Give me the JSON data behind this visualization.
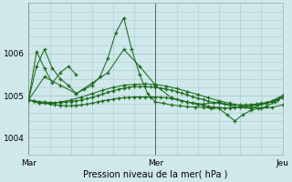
{
  "background_color": "#cfe8eb",
  "grid_color": "#a8c8cc",
  "line_color": "#1a6b1a",
  "title": "Pression niveau de la mer( hPa )",
  "xtick_labels": [
    "Mar",
    "Mer",
    "Jeu"
  ],
  "xtick_positions": [
    0,
    48,
    96
  ],
  "ylim": [
    1003.7,
    1007.0
  ],
  "ytick_positions": [
    1004,
    1005,
    1006
  ],
  "xlim": [
    0,
    96
  ],
  "lines": [
    {
      "x": [
        0,
        2,
        4,
        6,
        8,
        10,
        12,
        14,
        16,
        18,
        20,
        22,
        24,
        26,
        28,
        30,
        32,
        34,
        36,
        38,
        40,
        42,
        44,
        46,
        48,
        50,
        52,
        54,
        56,
        58,
        60,
        62,
        64,
        66,
        68,
        70,
        72,
        74,
        76,
        78,
        80,
        82,
        84,
        86,
        88,
        90,
        92,
        94,
        96
      ],
      "y": [
        1004.9,
        1004.87,
        1004.84,
        1004.82,
        1004.8,
        1004.78,
        1004.77,
        1004.76,
        1004.76,
        1004.77,
        1004.78,
        1004.8,
        1004.82,
        1004.85,
        1004.88,
        1004.9,
        1004.92,
        1004.94,
        1004.95,
        1004.96,
        1004.97,
        1004.97,
        1004.97,
        1004.97,
        1004.97,
        1004.96,
        1004.95,
        1004.93,
        1004.91,
        1004.88,
        1004.85,
        1004.82,
        1004.79,
        1004.77,
        1004.75,
        1004.73,
        1004.72,
        1004.71,
        1004.71,
        1004.72,
        1004.73,
        1004.74,
        1004.76,
        1004.78,
        1004.8,
        1004.83,
        1004.86,
        1004.9,
        1004.95
      ]
    },
    {
      "x": [
        0,
        2,
        4,
        6,
        8,
        10,
        12,
        14,
        16,
        18,
        20,
        22,
        24,
        26,
        28,
        30,
        32,
        34,
        36,
        38,
        40,
        42,
        44,
        46,
        48,
        50,
        52,
        54,
        56,
        58,
        60,
        62,
        64,
        66,
        68,
        70,
        72,
        74,
        76,
        78,
        80,
        82,
        84,
        86,
        88,
        90,
        92,
        94,
        96
      ],
      "y": [
        1004.9,
        1004.88,
        1004.86,
        1004.85,
        1004.84,
        1004.84,
        1004.84,
        1004.85,
        1004.86,
        1004.88,
        1004.9,
        1004.93,
        1004.96,
        1005.0,
        1005.04,
        1005.08,
        1005.12,
        1005.15,
        1005.18,
        1005.2,
        1005.22,
        1005.22,
        1005.22,
        1005.21,
        1005.2,
        1005.18,
        1005.16,
        1005.13,
        1005.1,
        1005.06,
        1005.02,
        1004.98,
        1004.94,
        1004.91,
        1004.87,
        1004.84,
        1004.82,
        1004.8,
        1004.79,
        1004.78,
        1004.78,
        1004.78,
        1004.79,
        1004.8,
        1004.82,
        1004.84,
        1004.87,
        1004.91,
        1004.95
      ]
    },
    {
      "x": [
        0,
        4,
        8,
        12,
        16,
        20,
        24,
        28,
        32,
        36,
        40,
        44,
        48,
        52,
        56,
        60,
        64,
        68,
        72,
        76,
        80,
        84,
        88,
        92,
        96
      ],
      "y": [
        1004.9,
        1004.82,
        1004.82,
        1004.85,
        1004.9,
        1004.97,
        1005.05,
        1005.13,
        1005.2,
        1005.25,
        1005.27,
        1005.28,
        1005.27,
        1005.23,
        1005.17,
        1005.1,
        1005.03,
        1004.95,
        1004.88,
        1004.82,
        1004.76,
        1004.72,
        1004.7,
        1004.72,
        1004.78
      ]
    },
    {
      "x": [
        0,
        6,
        12,
        18,
        24,
        30,
        36,
        42,
        48,
        54,
        60,
        66,
        72,
        78,
        84,
        90,
        96
      ],
      "y": [
        1004.9,
        1005.45,
        1005.25,
        1005.05,
        1005.3,
        1005.55,
        1006.1,
        1005.7,
        1005.25,
        1004.95,
        1004.85,
        1004.8,
        1004.85,
        1004.72,
        1004.7,
        1004.82,
        1005.0
      ],
      "marker_every": 1
    },
    {
      "x": [
        0,
        3,
        6,
        9,
        12,
        15,
        18,
        21,
        24,
        27,
        30,
        33,
        36,
        39,
        42,
        45,
        48,
        51,
        54,
        57,
        60,
        63,
        66,
        69,
        72,
        75,
        78,
        81,
        84,
        87,
        90,
        93,
        96
      ],
      "y": [
        1004.9,
        1005.7,
        1006.1,
        1005.65,
        1005.4,
        1005.25,
        1005.05,
        1005.15,
        1005.25,
        1005.45,
        1005.9,
        1006.5,
        1006.85,
        1006.1,
        1005.5,
        1005.05,
        1004.85,
        1004.82,
        1004.78,
        1004.76,
        1004.74,
        1004.73,
        1004.72,
        1004.71,
        1004.7,
        1004.55,
        1004.4,
        1004.55,
        1004.65,
        1004.7,
        1004.75,
        1004.85,
        1005.0
      ],
      "marker_every": 1
    },
    {
      "x": [
        0,
        3,
        6,
        9,
        12,
        15,
        18
      ],
      "y": [
        1004.9,
        1006.05,
        1005.65,
        1005.3,
        1005.55,
        1005.7,
        1005.5
      ],
      "marker_every": 1
    }
  ]
}
